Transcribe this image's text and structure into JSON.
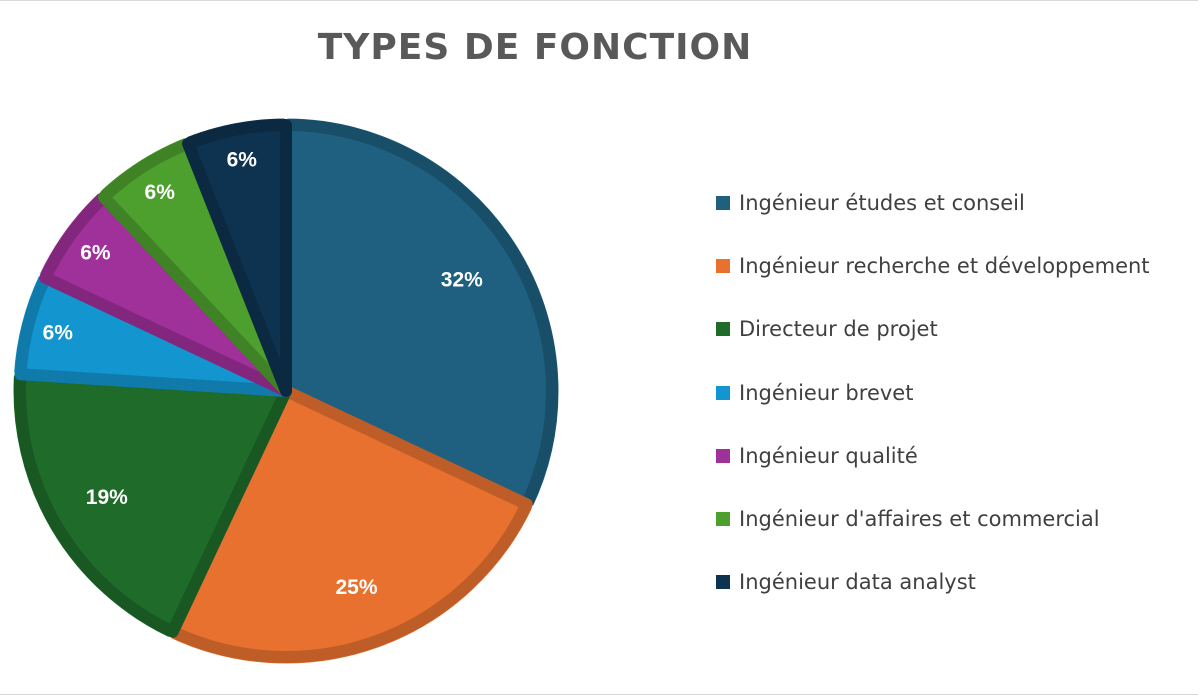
{
  "chart_data": {
    "type": "pie",
    "title": "TYPES DE FONCTION",
    "legend_position": "right",
    "slices": [
      {
        "label": "Ingénieur études et conseil",
        "value": 32,
        "display": "32%",
        "color": "#1F5F80"
      },
      {
        "label": "Ingénieur recherche et développement",
        "value": 25,
        "display": "25%",
        "color": "#E8712F"
      },
      {
        "label": "Directeur de projet",
        "value": 19,
        "display": "19%",
        "color": "#1E6B2A"
      },
      {
        "label": "Ingénieur brevet",
        "value": 6,
        "display": "6%",
        "color": "#1396CF"
      },
      {
        "label": "Ingénieur qualité",
        "value": 6,
        "display": "6%",
        "color": "#A0309A"
      },
      {
        "label": "Ingénieur d'affaires et commercial",
        "value": 6,
        "display": "6%",
        "color": "#4EA02E"
      },
      {
        "label": "Ingénieur data analyst",
        "value": 6,
        "display": "6%",
        "color": "#0E3350"
      }
    ]
  }
}
